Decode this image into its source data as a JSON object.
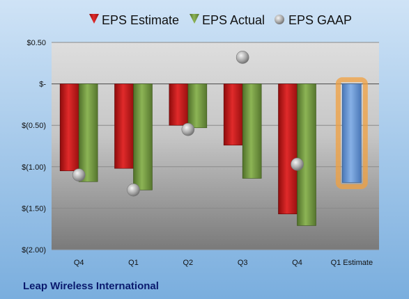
{
  "company": "Leap Wireless International",
  "chart_data": {
    "type": "bar",
    "categories": [
      "Q4",
      "Q1",
      "Q2",
      "Q3",
      "Q4",
      "Q1 Estimate"
    ],
    "series": [
      {
        "name": "EPS Estimate",
        "values": [
          -1.05,
          -1.02,
          -0.5,
          -0.74,
          -1.57,
          null
        ]
      },
      {
        "name": "EPS Actual",
        "values": [
          -1.18,
          -1.28,
          -0.53,
          -1.14,
          -1.71,
          -1.19
        ]
      },
      {
        "name": "EPS GAAP",
        "type": "scatter",
        "values": [
          -1.1,
          -1.28,
          -0.55,
          0.32,
          -0.97,
          null
        ]
      }
    ],
    "y_ticks": [
      0.5,
      0,
      -0.5,
      -1.0,
      -1.5,
      -2.0
    ],
    "y_tick_labels": [
      "$0.50",
      "$-",
      "$(0.50)",
      "$(1.00)",
      "$(1.50)",
      "$(2.00)"
    ],
    "ylim": [
      -2.0,
      0.5
    ],
    "grid": true,
    "legend_position": "top",
    "highlight_category": "Q1 Estimate",
    "colors": {
      "estimate": "#cc1a1a",
      "actual": "#77a040",
      "gaap": "#b0b0b0",
      "projection": "#6e9ad6",
      "highlight": "#f0a040",
      "company": "#0a1a6e"
    }
  }
}
